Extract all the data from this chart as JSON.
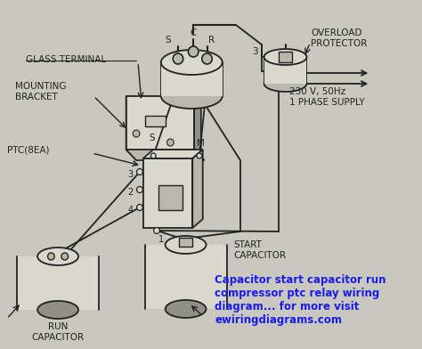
{
  "bg_color": "#c8c8be",
  "line_color": "#222222",
  "text_color": "#222222",
  "caption_color": "#1a1aee",
  "face_light": "#d8d8cc",
  "face_mid": "#b8b8ac",
  "face_dark": "#909088",
  "labels": {
    "glass_terminal": "GLASS TERMINAL",
    "mounting_bracket": "MOUNTING\nBRACKET",
    "ptc": "PTC(8EA)",
    "overload": "OVERLOAD\nPROTECTOR",
    "start_cap": "START\nCAPACITOR",
    "run_cap": "RUN\nCAPACITOR",
    "supply": "230 V, 50Hz\n1 PHASE SUPPLY",
    "caption": "Capacitor start capacitor run\ncompressor ptc relay wiring\ndiagram... for more visit\newiringdiagrams.com"
  }
}
